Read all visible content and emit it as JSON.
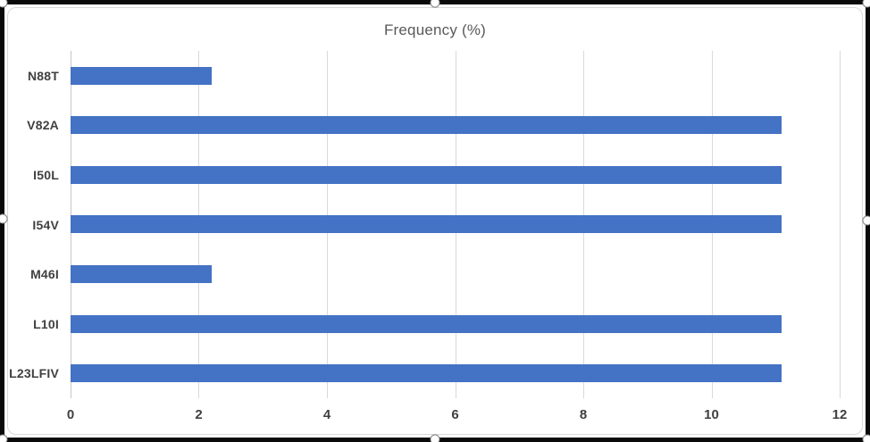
{
  "chart_data": {
    "type": "bar",
    "orientation": "horizontal",
    "title": "Frequency (%)",
    "categories": [
      "N88T",
      "V82A",
      "I50L",
      "I54V",
      "M46I",
      "L10I",
      "L23LFIV"
    ],
    "values": [
      2.2,
      11.1,
      11.1,
      11.1,
      2.2,
      11.1,
      11.1
    ],
    "xlim": [
      0,
      12
    ],
    "xticks": [
      0,
      2,
      4,
      6,
      8,
      10,
      12
    ],
    "grid": true,
    "legend": false,
    "bar_color": "#4472C4",
    "gridline_color": "#D9D9D9",
    "title_color": "#595959",
    "label_color": "#404040",
    "frame_color": "#0a0a0a"
  }
}
